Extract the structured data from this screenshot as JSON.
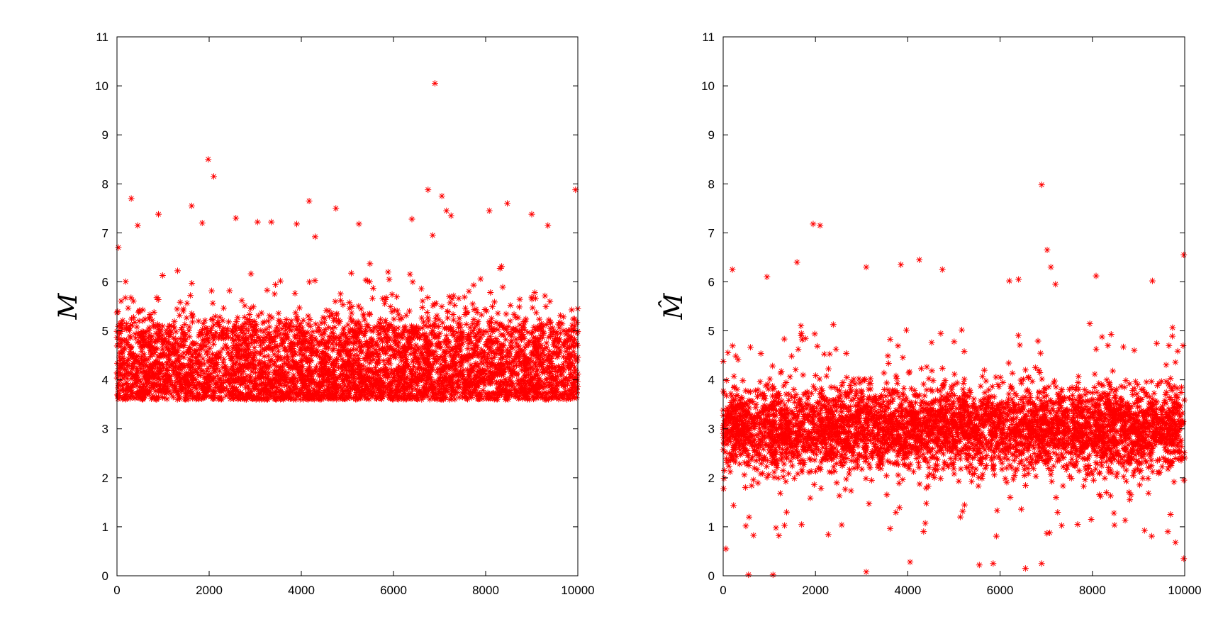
{
  "chart_data": [
    {
      "type": "scatter",
      "ylabel": "M",
      "xlim": [
        0,
        10000
      ],
      "ylim": [
        0,
        11
      ],
      "xticks": [
        "0",
        "2000",
        "4000",
        "6000",
        "8000",
        "10000"
      ],
      "yticks": [
        "0",
        "1",
        "2",
        "3",
        "4",
        "5",
        "6",
        "7",
        "8",
        "9",
        "10",
        "11"
      ],
      "grid": false,
      "marker": "asterisk",
      "color": "#ff0000",
      "series": [
        {
          "n_points": 10000,
          "bulk_range_y": [
            3.6,
            5.0
          ],
          "outliers": [
            {
              "x": 6900,
              "y": 10.05
            },
            {
              "x": 1980,
              "y": 8.5
            },
            {
              "x": 2100,
              "y": 8.15
            },
            {
              "x": 6750,
              "y": 7.88
            },
            {
              "x": 9950,
              "y": 7.88
            },
            {
              "x": 7050,
              "y": 7.75
            },
            {
              "x": 310,
              "y": 7.7
            },
            {
              "x": 4170,
              "y": 7.65
            },
            {
              "x": 8470,
              "y": 7.6
            },
            {
              "x": 1620,
              "y": 7.55
            },
            {
              "x": 4750,
              "y": 7.5
            },
            {
              "x": 7150,
              "y": 7.45
            },
            {
              "x": 8080,
              "y": 7.45
            },
            {
              "x": 900,
              "y": 7.38
            },
            {
              "x": 9000,
              "y": 7.38
            },
            {
              "x": 2580,
              "y": 7.3
            },
            {
              "x": 7250,
              "y": 7.35
            },
            {
              "x": 3050,
              "y": 7.22
            },
            {
              "x": 3350,
              "y": 7.22
            },
            {
              "x": 5250,
              "y": 7.18
            },
            {
              "x": 1850,
              "y": 7.2
            },
            {
              "x": 9350,
              "y": 7.15
            },
            {
              "x": 3900,
              "y": 7.18
            },
            {
              "x": 6400,
              "y": 7.28
            },
            {
              "x": 6850,
              "y": 6.95
            },
            {
              "x": 450,
              "y": 7.15
            },
            {
              "x": 4300,
              "y": 6.92
            },
            {
              "x": 30,
              "y": 6.7
            }
          ]
        }
      ]
    },
    {
      "type": "scatter",
      "ylabel": "M̂",
      "xlim": [
        0,
        10000
      ],
      "ylim": [
        0,
        11
      ],
      "xticks": [
        "0",
        "2000",
        "4000",
        "6000",
        "8000",
        "10000"
      ],
      "yticks": [
        "0",
        "1",
        "2",
        "3",
        "4",
        "5",
        "6",
        "7",
        "8",
        "9",
        "10",
        "11"
      ],
      "grid": false,
      "marker": "asterisk",
      "color": "#ff0000",
      "series": [
        {
          "n_points": 10000,
          "bulk_range_y": [
            1.8,
            4.2
          ],
          "outliers": [
            {
              "x": 6900,
              "y": 7.98
            },
            {
              "x": 1950,
              "y": 7.18
            },
            {
              "x": 2100,
              "y": 7.15
            },
            {
              "x": 7020,
              "y": 6.65
            },
            {
              "x": 9980,
              "y": 6.55
            },
            {
              "x": 4250,
              "y": 6.45
            },
            {
              "x": 1600,
              "y": 6.4
            },
            {
              "x": 3850,
              "y": 6.35
            },
            {
              "x": 3100,
              "y": 6.3
            },
            {
              "x": 4750,
              "y": 6.25
            },
            {
              "x": 200,
              "y": 6.25
            },
            {
              "x": 7100,
              "y": 6.3
            },
            {
              "x": 8080,
              "y": 6.12
            },
            {
              "x": 950,
              "y": 6.1
            },
            {
              "x": 6200,
              "y": 6.02
            },
            {
              "x": 9300,
              "y": 6.02
            },
            {
              "x": 7200,
              "y": 5.95
            },
            {
              "x": 6400,
              "y": 6.05
            },
            {
              "x": 60,
              "y": 0.55
            },
            {
              "x": 550,
              "y": 0.02
            },
            {
              "x": 1080,
              "y": 0.02
            },
            {
              "x": 3100,
              "y": 0.08
            },
            {
              "x": 4050,
              "y": 0.28
            },
            {
              "x": 5550,
              "y": 0.22
            },
            {
              "x": 5850,
              "y": 0.25
            },
            {
              "x": 6550,
              "y": 0.15
            },
            {
              "x": 6900,
              "y": 0.25
            },
            {
              "x": 9980,
              "y": 0.35
            },
            {
              "x": 9800,
              "y": 0.68
            }
          ]
        }
      ]
    }
  ]
}
